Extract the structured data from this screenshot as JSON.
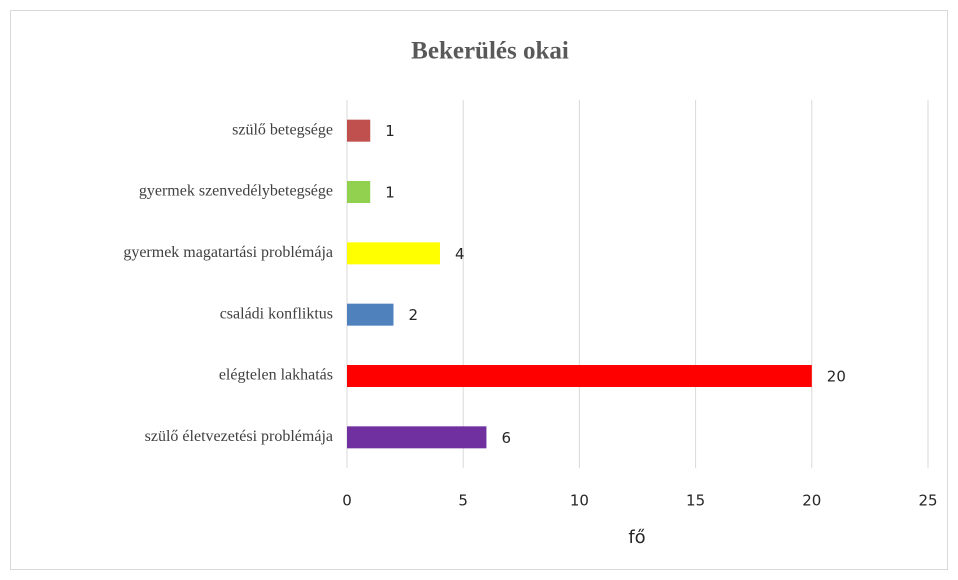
{
  "chart_data": {
    "type": "hbar",
    "title": "Bekerülés okai",
    "xlabel": "fő",
    "categories": [
      "szülő betegsége",
      "gyermek szenvedélybetegsége",
      "gyermek magatartási problémája",
      "családi konfliktus",
      "elégtelen lakhatás",
      "szülő életvezetési problémája"
    ],
    "values": [
      1,
      1,
      4,
      2,
      20,
      6
    ],
    "colors": [
      "#c0504d",
      "#92d050",
      "#ffff00",
      "#4f81bd",
      "#ff0000",
      "#7030a0"
    ],
    "xlim": [
      0,
      25
    ],
    "xticks": [
      0,
      5,
      10,
      15,
      20,
      25
    ],
    "grid": true
  }
}
